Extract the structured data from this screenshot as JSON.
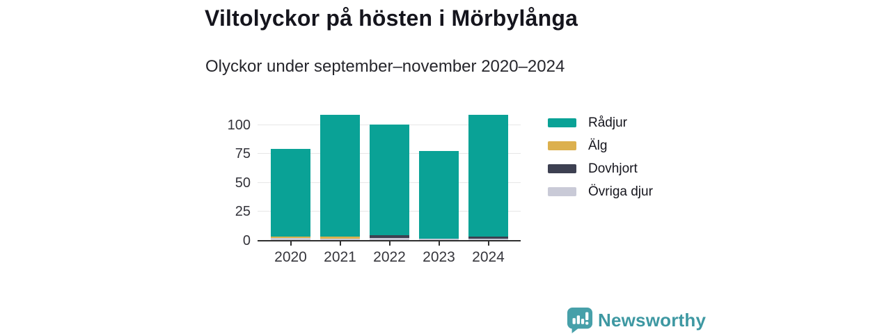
{
  "header": {
    "title": "Viltolyckor på hösten i Mörbylånga",
    "subtitle": "Olyckor under september–november 2020–2024"
  },
  "chart_data": {
    "type": "bar",
    "variant": "stacked-vertical",
    "title": "Viltolyckor på hösten i Mörbylånga",
    "subtitle": "Olyckor under september–november 2020–2024",
    "categories": [
      "2020",
      "2021",
      "2022",
      "2023",
      "2024"
    ],
    "series": [
      {
        "name": "Rådjur",
        "color": "#0aa296",
        "values": [
          76,
          105,
          96,
          76,
          105
        ]
      },
      {
        "name": "Älg",
        "color": "#dcb04e",
        "values": [
          1,
          2,
          0,
          0,
          0
        ]
      },
      {
        "name": "Dovhjort",
        "color": "#3d4051",
        "values": [
          0,
          0,
          2,
          0,
          2
        ]
      },
      {
        "name": "Övriga djur",
        "color": "#c9cad7",
        "values": [
          2,
          1,
          2,
          1,
          1
        ]
      }
    ],
    "stack_order_bottom_to_top": [
      "Övriga djur",
      "Dovhjort",
      "Älg",
      "Rådjur"
    ],
    "totals": [
      79,
      108,
      100,
      77,
      108
    ],
    "xlabel": "",
    "ylabel": "",
    "yticks": [
      0,
      25,
      50,
      75,
      100
    ],
    "ylim": [
      0,
      113
    ],
    "grid": "horizontal",
    "legend_position": "right"
  },
  "footer": {
    "brand": "Newsworthy",
    "brand_color": "#3e98a2",
    "logo_icon": "bar-chart-speech-bubble-icon",
    "logo_fill": "#47a0a9"
  }
}
